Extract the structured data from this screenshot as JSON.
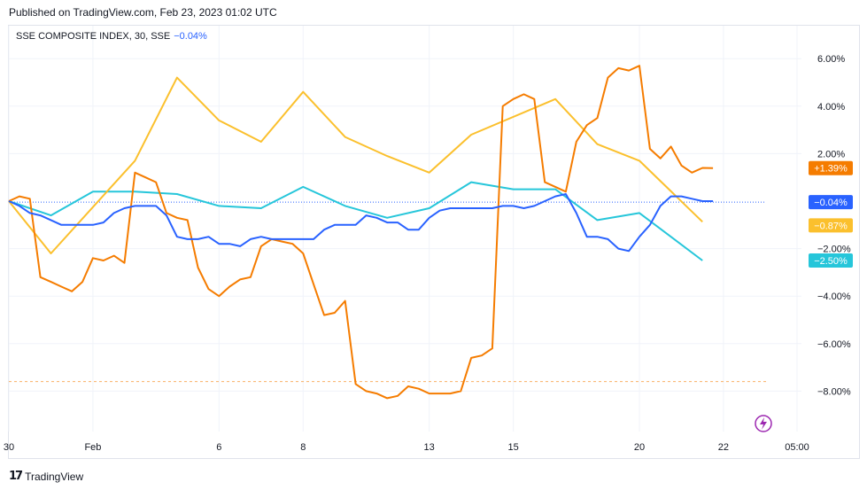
{
  "published": "Published on TradingView.com, Feb 23, 2023 01:02 UTC",
  "legend": {
    "name": "SSE COMPOSITE INDEX, 30, SSE",
    "change": "−0.04%"
  },
  "footer": {
    "brand": "TradingView"
  },
  "colors": {
    "blue": "#2962ff",
    "orange": "#f57c00",
    "yellow": "#fbc02d",
    "teal": "#26c6da",
    "grid": "#f0f3fa"
  },
  "chart_data": {
    "type": "line",
    "title": "SSE COMPOSITE INDEX, 30, SSE",
    "ylabel": "",
    "ylim": [
      -9.3,
      7.0
    ],
    "y_unit": "%",
    "xlim": [
      0,
      33.5
    ],
    "y_ticks": [
      "6.00%",
      "4.00%",
      "2.00%",
      "−2.00%",
      "−4.00%",
      "−6.00%",
      "−8.00%"
    ],
    "y_tick_values": [
      6,
      4,
      2,
      -2,
      -4,
      -6,
      -8
    ],
    "x_ticks": [
      "30",
      "Feb",
      "6",
      "8",
      "13",
      "15",
      "20",
      "22",
      "05:00"
    ],
    "x_tick_values": [
      0,
      4,
      10,
      14,
      20,
      24,
      30,
      34,
      37.5
    ],
    "grid": true,
    "series": [
      {
        "name": "",
        "color_key": "blue",
        "last_label": "−0.04%",
        "x": [
          0,
          0.5,
          1,
          1.5,
          2,
          2.5,
          3,
          3.5,
          4,
          4.5,
          5,
          5.5,
          6,
          6.5,
          7,
          7.5,
          8,
          8.5,
          9,
          9.5,
          10,
          10.5,
          11,
          11.5,
          12,
          12.5,
          13,
          13.5,
          14,
          14.5,
          15,
          15.5,
          16,
          16.5,
          17,
          17.5,
          18,
          18.5,
          19,
          19.5,
          20,
          20.5,
          21,
          21.5,
          22,
          22.5,
          23,
          23.5,
          24,
          24.5,
          25,
          25.5,
          26,
          26.5,
          27,
          27.5,
          28,
          28.5,
          29,
          29.5,
          30,
          30.5,
          31,
          31.5,
          32,
          32.5,
          33,
          33.5
        ],
        "y": [
          0,
          -0.2,
          -0.5,
          -0.6,
          -0.8,
          -1.0,
          -1.0,
          -1.0,
          -1.0,
          -0.9,
          -0.5,
          -0.3,
          -0.2,
          -0.2,
          -0.2,
          -0.6,
          -1.5,
          -1.6,
          -1.6,
          -1.5,
          -1.8,
          -1.8,
          -1.9,
          -1.6,
          -1.5,
          -1.6,
          -1.6,
          -1.6,
          -1.6,
          -1.6,
          -1.2,
          -1.0,
          -1.0,
          -1.0,
          -0.6,
          -0.7,
          -0.9,
          -0.9,
          -1.2,
          -1.2,
          -0.7,
          -0.4,
          -0.3,
          -0.3,
          -0.3,
          -0.3,
          -0.3,
          -0.2,
          -0.2,
          -0.3,
          -0.2,
          0,
          0.2,
          0.3,
          -0.5,
          -1.5,
          -1.5,
          -1.6,
          -2.0,
          -2.1,
          -1.5,
          -1.0,
          -0.2,
          0.2,
          0.2,
          0.1,
          0,
          0
        ]
      },
      {
        "name": "",
        "color_key": "orange",
        "last_label": "+1.39%",
        "x": [
          0,
          0.5,
          1,
          1.5,
          2,
          2.5,
          3,
          3.5,
          4,
          4.5,
          5,
          5.5,
          6,
          6.5,
          7,
          7.5,
          8,
          8.5,
          9,
          9.5,
          10,
          10.5,
          11,
          11.5,
          12,
          12.5,
          13,
          13.5,
          14,
          14.5,
          15,
          15.5,
          16,
          16.5,
          17,
          17.5,
          18,
          18.5,
          19,
          19.5,
          20,
          20.5,
          21,
          21.5,
          22,
          22.5,
          23,
          23.5,
          24,
          24.5,
          25,
          25.5,
          26,
          26.5,
          27,
          27.5,
          28,
          28.5,
          29,
          29.5,
          30,
          30.5,
          31,
          31.5,
          32,
          32.5,
          33,
          33.5
        ],
        "y": [
          0,
          0.2,
          0.1,
          -3.2,
          -3.4,
          -3.6,
          -3.8,
          -3.4,
          -2.4,
          -2.5,
          -2.3,
          -2.6,
          1.2,
          1.0,
          0.8,
          -0.5,
          -0.7,
          -0.8,
          -2.8,
          -3.7,
          -4.0,
          -3.6,
          -3.3,
          -3.2,
          -1.9,
          -1.6,
          -1.7,
          -1.8,
          -2.2,
          -3.5,
          -4.8,
          -4.7,
          -4.2,
          -7.7,
          -8.0,
          -8.1,
          -8.3,
          -8.2,
          -7.8,
          -7.9,
          -8.1,
          -8.1,
          -8.1,
          -8.0,
          -6.6,
          -6.5,
          -6.2,
          4.0,
          4.3,
          4.5,
          4.3,
          0.8,
          0.6,
          0.4,
          2.5,
          3.2,
          3.5,
          5.2,
          5.6,
          5.5,
          5.7,
          2.2,
          1.8,
          2.3,
          1.5,
          1.2,
          1.4,
          1.39
        ]
      },
      {
        "name": "",
        "color_key": "yellow",
        "last_label": "−0.87%",
        "x": [
          0,
          2,
          6,
          8,
          10,
          12,
          14,
          16,
          18,
          20,
          22,
          26,
          28,
          30,
          33
        ],
        "y": [
          0,
          -2.2,
          1.7,
          5.2,
          3.4,
          2.5,
          4.6,
          2.7,
          1.9,
          1.2,
          2.8,
          4.3,
          2.4,
          1.7,
          -0.87
        ]
      },
      {
        "name": "",
        "color_key": "teal",
        "last_label": "−2.50%",
        "x": [
          0,
          2,
          4,
          6,
          8,
          10,
          12,
          14,
          16,
          18,
          20,
          22,
          24,
          26,
          28,
          30,
          33
        ],
        "y": [
          0,
          -0.6,
          0.4,
          0.4,
          0.3,
          -0.2,
          -0.3,
          0.6,
          -0.2,
          -0.7,
          -0.3,
          0.8,
          0.5,
          0.5,
          -0.8,
          -0.5,
          -2.5
        ]
      }
    ],
    "reference_lines": [
      {
        "y": -0.04,
        "color_key": "blue",
        "style": "dotted"
      },
      {
        "y": -7.6,
        "color_key": "orange",
        "style": "dashed"
      }
    ]
  }
}
